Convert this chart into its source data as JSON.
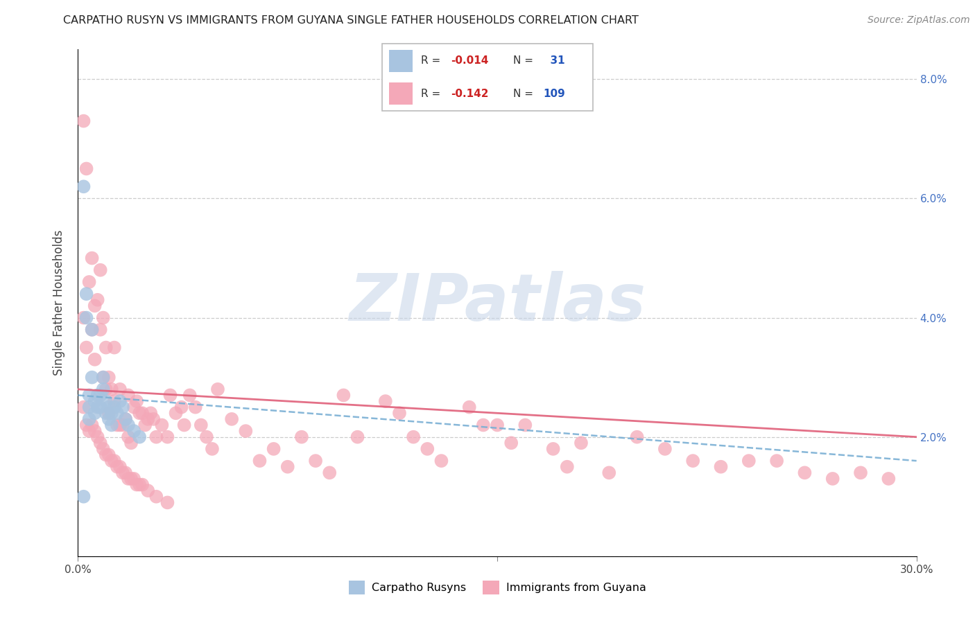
{
  "title": "CARPATHO RUSYN VS IMMIGRANTS FROM GUYANA SINGLE FATHER HOUSEHOLDS CORRELATION CHART",
  "source": "Source: ZipAtlas.com",
  "ylabel": "Single Father Households",
  "xlim": [
    0.0,
    0.3
  ],
  "ylim": [
    0.0,
    0.085
  ],
  "xtick_vals": [
    0.0,
    0.15,
    0.3
  ],
  "xtick_labels": [
    "0.0%",
    "",
    "30.0%"
  ],
  "ytick_vals": [
    0.0,
    0.02,
    0.04,
    0.06,
    0.08
  ],
  "legend_label1": "Carpatho Rusyns",
  "legend_label2": "Immigrants from Guyana",
  "R1": -0.014,
  "N1": 31,
  "R2": -0.142,
  "N2": 109,
  "color1": "#a8c4e0",
  "color2": "#f4a8b8",
  "line_color1": "#7aafd4",
  "line_color2": "#e0607a",
  "watermark": "ZIPatlas",
  "blue_x": [
    0.002,
    0.003,
    0.003,
    0.004,
    0.004,
    0.004,
    0.005,
    0.005,
    0.006,
    0.006,
    0.007,
    0.007,
    0.008,
    0.008,
    0.009,
    0.009,
    0.01,
    0.01,
    0.011,
    0.011,
    0.012,
    0.012,
    0.013,
    0.014,
    0.015,
    0.016,
    0.017,
    0.018,
    0.02,
    0.022,
    0.002
  ],
  "blue_y": [
    0.062,
    0.044,
    0.04,
    0.027,
    0.025,
    0.023,
    0.038,
    0.03,
    0.026,
    0.024,
    0.027,
    0.025,
    0.027,
    0.025,
    0.03,
    0.028,
    0.026,
    0.024,
    0.025,
    0.023,
    0.024,
    0.022,
    0.025,
    0.024,
    0.026,
    0.025,
    0.023,
    0.022,
    0.021,
    0.02,
    0.01
  ],
  "pink_x": [
    0.002,
    0.002,
    0.003,
    0.003,
    0.004,
    0.005,
    0.005,
    0.006,
    0.006,
    0.007,
    0.008,
    0.008,
    0.009,
    0.009,
    0.01,
    0.01,
    0.011,
    0.011,
    0.012,
    0.013,
    0.013,
    0.014,
    0.015,
    0.015,
    0.016,
    0.017,
    0.018,
    0.018,
    0.019,
    0.02,
    0.021,
    0.022,
    0.023,
    0.024,
    0.025,
    0.026,
    0.027,
    0.028,
    0.03,
    0.032,
    0.033,
    0.035,
    0.037,
    0.038,
    0.04,
    0.042,
    0.044,
    0.046,
    0.048,
    0.05,
    0.055,
    0.06,
    0.065,
    0.07,
    0.075,
    0.08,
    0.085,
    0.09,
    0.095,
    0.1,
    0.11,
    0.115,
    0.12,
    0.125,
    0.13,
    0.14,
    0.145,
    0.15,
    0.155,
    0.16,
    0.17,
    0.175,
    0.18,
    0.19,
    0.2,
    0.21,
    0.22,
    0.23,
    0.24,
    0.25,
    0.26,
    0.27,
    0.28,
    0.29,
    0.002,
    0.003,
    0.004,
    0.005,
    0.006,
    0.007,
    0.008,
    0.009,
    0.01,
    0.011,
    0.012,
    0.013,
    0.014,
    0.015,
    0.016,
    0.017,
    0.018,
    0.019,
    0.02,
    0.021,
    0.022,
    0.023,
    0.025,
    0.028,
    0.032
  ],
  "pink_y": [
    0.073,
    0.04,
    0.065,
    0.035,
    0.046,
    0.05,
    0.038,
    0.042,
    0.033,
    0.043,
    0.048,
    0.038,
    0.04,
    0.03,
    0.035,
    0.028,
    0.03,
    0.024,
    0.028,
    0.035,
    0.026,
    0.022,
    0.028,
    0.022,
    0.022,
    0.023,
    0.027,
    0.02,
    0.019,
    0.025,
    0.026,
    0.024,
    0.024,
    0.022,
    0.023,
    0.024,
    0.023,
    0.02,
    0.022,
    0.02,
    0.027,
    0.024,
    0.025,
    0.022,
    0.027,
    0.025,
    0.022,
    0.02,
    0.018,
    0.028,
    0.023,
    0.021,
    0.016,
    0.018,
    0.015,
    0.02,
    0.016,
    0.014,
    0.027,
    0.02,
    0.026,
    0.024,
    0.02,
    0.018,
    0.016,
    0.025,
    0.022,
    0.022,
    0.019,
    0.022,
    0.018,
    0.015,
    0.019,
    0.014,
    0.02,
    0.018,
    0.016,
    0.015,
    0.016,
    0.016,
    0.014,
    0.013,
    0.014,
    0.013,
    0.025,
    0.022,
    0.021,
    0.022,
    0.021,
    0.02,
    0.019,
    0.018,
    0.017,
    0.017,
    0.016,
    0.016,
    0.015,
    0.015,
    0.014,
    0.014,
    0.013,
    0.013,
    0.013,
    0.012,
    0.012,
    0.012,
    0.011,
    0.01,
    0.009
  ],
  "blue_line_x": [
    0.0,
    0.3
  ],
  "blue_line_y": [
    0.027,
    0.016
  ],
  "pink_line_x": [
    0.0,
    0.3
  ],
  "pink_line_y": [
    0.028,
    0.02
  ]
}
